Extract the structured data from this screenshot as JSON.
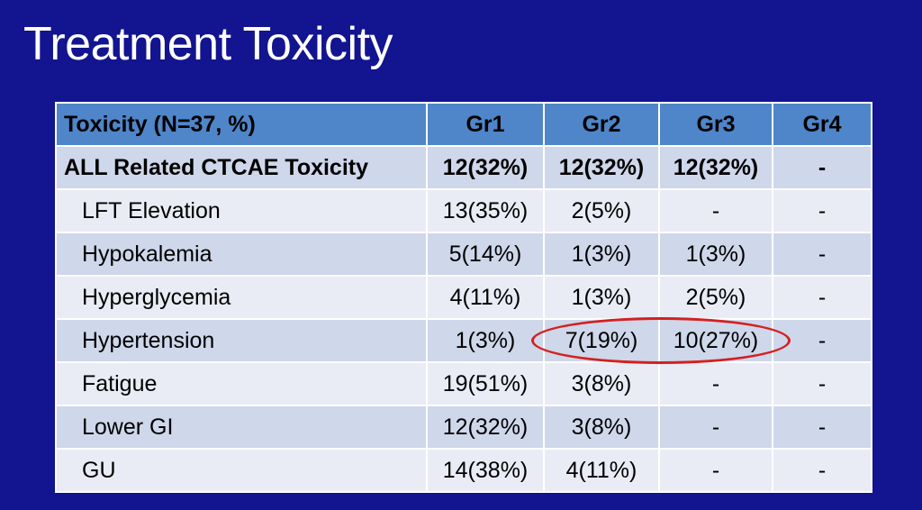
{
  "slide": {
    "title": "Treatment Toxicity"
  },
  "table": {
    "headers": [
      "Toxicity (N=37, %)",
      "Gr1",
      "Gr2",
      "Gr3",
      "Gr4"
    ],
    "rows": [
      {
        "label": "ALL Related CTCAE Toxicity",
        "values": [
          "12(32%)",
          "12(32%)",
          "12(32%)",
          "-"
        ]
      },
      {
        "label": "LFT Elevation",
        "values": [
          "13(35%)",
          "2(5%)",
          "-",
          "-"
        ]
      },
      {
        "label": "Hypokalemia",
        "values": [
          "5(14%)",
          "1(3%)",
          "1(3%)",
          "-"
        ]
      },
      {
        "label": "Hyperglycemia",
        "values": [
          "4(11%)",
          "1(3%)",
          "2(5%)",
          "-"
        ]
      },
      {
        "label": "Hypertension",
        "values": [
          "1(3%)",
          "7(19%)",
          "10(27%)",
          "-"
        ]
      },
      {
        "label": "Fatigue",
        "values": [
          "19(51%)",
          "3(8%)",
          "-",
          "-"
        ]
      },
      {
        "label": "Lower GI",
        "values": [
          "12(32%)",
          "3(8%)",
          "-",
          "-"
        ]
      },
      {
        "label": "GU",
        "values": [
          "14(38%)",
          "4(11%)",
          "-",
          "-"
        ]
      }
    ]
  },
  "colors": {
    "background": "#13148f",
    "header": "#4f86c9",
    "row_band": "#cfd7ea",
    "row_plain": "#e9ecf5",
    "highlight_oval": "#d42020"
  }
}
